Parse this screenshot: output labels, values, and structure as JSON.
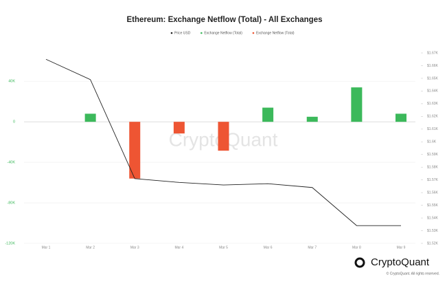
{
  "chart_data": {
    "type": "bar-line",
    "title": "Ethereum: Exchange Netflow (Total) - All Exchanges",
    "categories": [
      "Mar 1",
      "Mar 2",
      "Mar 3",
      "Mar 4",
      "Mar 5",
      "Mar 6",
      "Mar 7",
      "Mar 8",
      "Mar 9"
    ],
    "series": [
      {
        "name": "Price USD",
        "color": "#222222",
        "type": "line",
        "axis": "y2",
        "values": [
          1665,
          1649,
          1571,
          1568,
          1566,
          1567,
          1564,
          1534,
          1534
        ]
      },
      {
        "name": "Exchange Netflow (Total)",
        "color": "#3cb95b",
        "type": "bar",
        "values": [
          null,
          8000,
          null,
          null,
          null,
          14000,
          5000,
          34000,
          8000
        ]
      },
      {
        "name": "Exchange Netflow (Total)",
        "color": "#ee5533",
        "type": "bar",
        "values": [
          null,
          null,
          -56000,
          -11500,
          -28500,
          null,
          null,
          null,
          null
        ]
      }
    ],
    "ylim": [
      -120000,
      68000
    ],
    "yticks": [
      {
        "value": 40000,
        "label": "40K"
      },
      0,
      {
        "value": -40000,
        "label": "-40K"
      },
      {
        "value": -80000,
        "label": "-80K"
      },
      {
        "value": -120000,
        "label": "-120K"
      }
    ],
    "y2lim": [
      1520,
      1670
    ],
    "y2ticks": [
      {
        "value": 1670,
        "label": "$1.67K"
      },
      {
        "value": 1660,
        "label": "$1.66K"
      },
      {
        "value": 1650,
        "label": "$1.65K"
      },
      {
        "value": 1640,
        "label": "$1.64K"
      },
      {
        "value": 1630,
        "label": "$1.63K"
      },
      {
        "value": 1620,
        "label": "$1.62K"
      },
      {
        "value": 1610,
        "label": "$1.61K"
      },
      {
        "value": 1600,
        "label": "$1.6K"
      },
      {
        "value": 1590,
        "label": "$1.59K"
      },
      {
        "value": 1580,
        "label": "$1.58K"
      },
      {
        "value": 1570,
        "label": "$1.57K"
      },
      {
        "value": 1560,
        "label": "$1.56K"
      },
      {
        "value": 1550,
        "label": "$1.55K"
      },
      {
        "value": 1540,
        "label": "$1.54K"
      },
      {
        "value": 1530,
        "label": "$1.53K"
      },
      {
        "value": 1520,
        "label": "$1.52K"
      }
    ],
    "grid": true,
    "watermark": "CryptoQuant",
    "footer_brand": "CryptoQuant",
    "footer_note": "© CryptoQuant. All rights reserved."
  }
}
